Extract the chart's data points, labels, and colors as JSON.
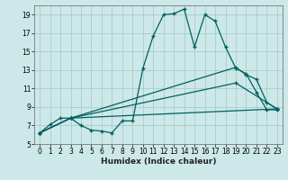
{
  "xlabel": "Humidex (Indice chaleur)",
  "bg_color": "#cce8e8",
  "grid_color": "#aacccc",
  "line_color": "#006060",
  "xlim": [
    -0.5,
    23.5
  ],
  "ylim": [
    5,
    20
  ],
  "xticks": [
    0,
    1,
    2,
    3,
    4,
    5,
    6,
    7,
    8,
    9,
    10,
    11,
    12,
    13,
    14,
    15,
    16,
    17,
    18,
    19,
    20,
    21,
    22,
    23
  ],
  "yticks": [
    5,
    7,
    9,
    11,
    13,
    15,
    17,
    19
  ],
  "line1_x": [
    0,
    1,
    2,
    3,
    4,
    5,
    6,
    7,
    8,
    9,
    10,
    11,
    12,
    13,
    14,
    15,
    16,
    17,
    18,
    19,
    20,
    21,
    22,
    23
  ],
  "line1_y": [
    6.2,
    7.1,
    7.8,
    7.8,
    7.0,
    6.5,
    6.4,
    6.2,
    7.5,
    7.5,
    13.2,
    16.7,
    19.0,
    19.1,
    19.6,
    15.5,
    19.0,
    18.3,
    15.5,
    13.2,
    12.6,
    10.6,
    8.7,
    8.7
  ],
  "line2_x": [
    0,
    3,
    19,
    20,
    21,
    22,
    23
  ],
  "line2_y": [
    6.2,
    7.8,
    13.3,
    12.5,
    12.0,
    9.5,
    8.8
  ],
  "line3_x": [
    0,
    3,
    19,
    23
  ],
  "line3_y": [
    6.2,
    7.8,
    11.6,
    8.8
  ],
  "line4_x": [
    0,
    3,
    23
  ],
  "line4_y": [
    6.2,
    7.8,
    8.8
  ]
}
